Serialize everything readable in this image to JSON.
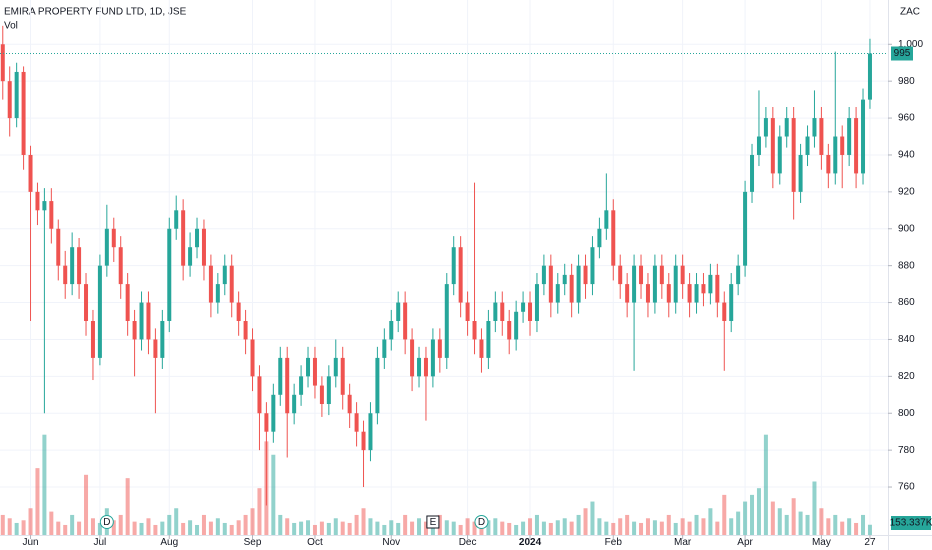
{
  "chart_data": {
    "type": "candlestick",
    "title": "EMIRA PROPERTY FUND LTD, 1D, JSE",
    "volume_title": "Vol",
    "currency": "ZAC",
    "up_color": "#26a69a",
    "down_color": "#ef5350",
    "ylim": [
      734,
      1024
    ],
    "yticks": [
      760,
      780,
      800,
      820,
      840,
      860,
      880,
      900,
      920,
      940,
      960,
      980,
      {
        "value": 1000,
        "label": "1,000"
      }
    ],
    "y2lim": [
      0,
      8000000
    ],
    "xlim": [
      -0.4,
      127.6
    ],
    "xticks": [
      {
        "value": 4,
        "label": "Jun"
      },
      {
        "value": 14,
        "label": "Jul"
      },
      {
        "value": 24,
        "label": "Aug"
      },
      {
        "value": 36,
        "label": "Sep"
      },
      {
        "value": 45,
        "label": "Oct"
      },
      {
        "value": 56,
        "label": "Nov"
      },
      {
        "value": 67,
        "label": "Dec"
      },
      {
        "value": 76,
        "label": "2024"
      },
      {
        "value": 88,
        "label": "Feb"
      },
      {
        "value": 98,
        "label": "Mar"
      },
      {
        "value": 107,
        "label": "Apr"
      },
      {
        "value": 118,
        "label": "May"
      },
      {
        "value": 125,
        "label": "27"
      }
    ],
    "grid": true,
    "open": [
      1000,
      980,
      960,
      985,
      940,
      920,
      910,
      915,
      900,
      880,
      870,
      890,
      870,
      850,
      830,
      880,
      900,
      890,
      870,
      850,
      840,
      860,
      840,
      830,
      850,
      900,
      910,
      880,
      890,
      900,
      880,
      860,
      870,
      880,
      860,
      850,
      840,
      820,
      800,
      790,
      810,
      830,
      800,
      810,
      820,
      830,
      815,
      805,
      820,
      830,
      810,
      800,
      790,
      780,
      800,
      830,
      840,
      850,
      860,
      840,
      820,
      830,
      820,
      840,
      830,
      870,
      890,
      860,
      850,
      840,
      830,
      850,
      860,
      850,
      840,
      855,
      860,
      850,
      870,
      880,
      860,
      870,
      875,
      860,
      880,
      870,
      890,
      900,
      910,
      880,
      870,
      860,
      880,
      870,
      860,
      880,
      870,
      860,
      880,
      870,
      860,
      870,
      865,
      875,
      860,
      850,
      870,
      880,
      920,
      940,
      950,
      960,
      930,
      950,
      960,
      920,
      940,
      950,
      960,
      940,
      930,
      950,
      940,
      960,
      930,
      970
    ],
    "high": [
      1010,
      988,
      990,
      988,
      945,
      925,
      922,
      922,
      905,
      888,
      898,
      895,
      876,
      856,
      886,
      913,
      906,
      896,
      876,
      856,
      866,
      866,
      846,
      856,
      906,
      918,
      916,
      898,
      906,
      905,
      886,
      876,
      886,
      886,
      866,
      856,
      846,
      826,
      806,
      816,
      836,
      836,
      816,
      826,
      836,
      836,
      820,
      826,
      840,
      836,
      816,
      806,
      796,
      806,
      836,
      846,
      856,
      866,
      866,
      846,
      836,
      836,
      846,
      846,
      876,
      896,
      896,
      866,
      925,
      846,
      856,
      866,
      866,
      856,
      861,
      866,
      866,
      876,
      886,
      886,
      876,
      881,
      881,
      886,
      886,
      896,
      906,
      930,
      916,
      886,
      876,
      886,
      886,
      876,
      886,
      886,
      876,
      886,
      886,
      876,
      876,
      876,
      881,
      881,
      866,
      876,
      886,
      926,
      946,
      975,
      966,
      966,
      956,
      966,
      966,
      946,
      956,
      975,
      966,
      946,
      996,
      956,
      966,
      966,
      976,
      1003
    ],
    "low": [
      970,
      950,
      955,
      932,
      850,
      902,
      800,
      892,
      872,
      862,
      864,
      862,
      842,
      818,
      826,
      874,
      882,
      862,
      842,
      820,
      834,
      832,
      800,
      824,
      844,
      894,
      872,
      874,
      884,
      872,
      852,
      854,
      864,
      852,
      842,
      832,
      812,
      780,
      750,
      784,
      804,
      776,
      794,
      804,
      814,
      808,
      798,
      799,
      814,
      802,
      792,
      782,
      760,
      774,
      794,
      824,
      834,
      844,
      832,
      812,
      814,
      796,
      814,
      822,
      824,
      864,
      852,
      842,
      832,
      822,
      824,
      844,
      842,
      832,
      834,
      849,
      842,
      844,
      864,
      852,
      854,
      864,
      852,
      854,
      862,
      864,
      884,
      894,
      872,
      862,
      852,
      823,
      862,
      852,
      854,
      862,
      852,
      854,
      862,
      852,
      854,
      858,
      859,
      852,
      823,
      844,
      864,
      874,
      914,
      934,
      944,
      922,
      924,
      944,
      905,
      914,
      934,
      944,
      932,
      922,
      924,
      922,
      934,
      922,
      924,
      965
    ],
    "close": [
      980,
      960,
      985,
      940,
      920,
      910,
      915,
      900,
      880,
      870,
      890,
      870,
      850,
      830,
      880,
      900,
      890,
      870,
      850,
      840,
      860,
      840,
      830,
      850,
      900,
      910,
      880,
      890,
      900,
      880,
      860,
      870,
      880,
      860,
      850,
      840,
      820,
      800,
      790,
      810,
      830,
      800,
      810,
      820,
      830,
      815,
      805,
      820,
      830,
      810,
      800,
      790,
      780,
      800,
      830,
      840,
      850,
      860,
      840,
      820,
      830,
      820,
      840,
      830,
      870,
      890,
      860,
      850,
      840,
      830,
      850,
      860,
      850,
      840,
      855,
      860,
      850,
      870,
      880,
      860,
      870,
      875,
      860,
      880,
      870,
      890,
      900,
      910,
      880,
      870,
      860,
      880,
      870,
      860,
      880,
      870,
      860,
      880,
      870,
      860,
      870,
      865,
      875,
      860,
      850,
      870,
      880,
      920,
      940,
      950,
      960,
      930,
      950,
      960,
      920,
      940,
      950,
      960,
      940,
      930,
      950,
      940,
      960,
      930,
      970,
      995
    ],
    "volume": [
      300000,
      250000,
      180000,
      220000,
      400000,
      1000000,
      1500000,
      350000,
      200000,
      150000,
      300000,
      200000,
      900000,
      250000,
      180000,
      400000,
      220000,
      300000,
      850000,
      200000,
      180000,
      250000,
      150000,
      200000,
      300000,
      400000,
      180000,
      220000,
      150000,
      300000,
      200000,
      250000,
      180000,
      150000,
      220000,
      300000,
      400000,
      700000,
      1400000,
      1200000,
      300000,
      250000,
      180000,
      200000,
      220000,
      150000,
      200000,
      180000,
      250000,
      200000,
      180000,
      300000,
      400000,
      250000,
      200000,
      150000,
      220000,
      180000,
      300000,
      200000,
      250000,
      200000,
      180000,
      300000,
      220000,
      200000,
      150000,
      250000,
      200000,
      180000,
      220000,
      250000,
      200000,
      180000,
      150000,
      200000,
      250000,
      300000,
      200000,
      180000,
      220000,
      250000,
      200000,
      300000,
      400000,
      500000,
      250000,
      200000,
      180000,
      250000,
      300000,
      200000,
      180000,
      250000,
      220000,
      200000,
      300000,
      180000,
      250000,
      200000,
      300000,
      250000,
      400000,
      200000,
      600000,
      250000,
      350000,
      500000,
      600000,
      700000,
      1500000,
      500000,
      400000,
      300000,
      550000,
      350000,
      300000,
      800000,
      400000,
      250000,
      300000,
      200000,
      250000,
      180000,
      300000,
      153337
    ],
    "volume_value_labels": {
      "125": "153.337K"
    },
    "events": [
      {
        "index": 15,
        "label": "D"
      },
      {
        "index": 62,
        "label": "E"
      },
      {
        "index": 69,
        "label": "D"
      }
    ]
  }
}
